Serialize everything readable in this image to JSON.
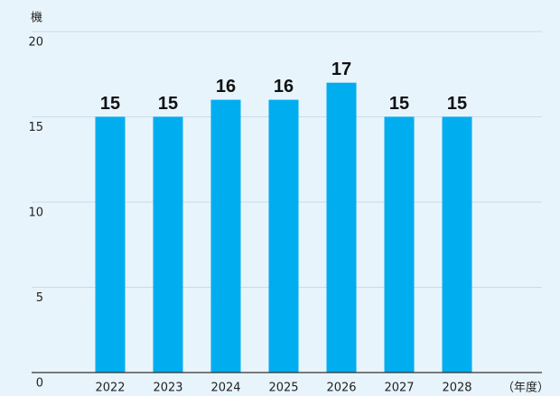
{
  "chart_data": {
    "type": "bar",
    "y_label": "機",
    "x_label": "（年度）",
    "categories": [
      "2022",
      "2023",
      "2024",
      "2025",
      "2026",
      "2027",
      "2028"
    ],
    "values": [
      15,
      15,
      16,
      16,
      17,
      15,
      15
    ],
    "color": "#00adef",
    "ylim": [
      0,
      20
    ],
    "yticks": [
      0,
      5,
      10,
      15,
      20
    ],
    "grid": true
  }
}
